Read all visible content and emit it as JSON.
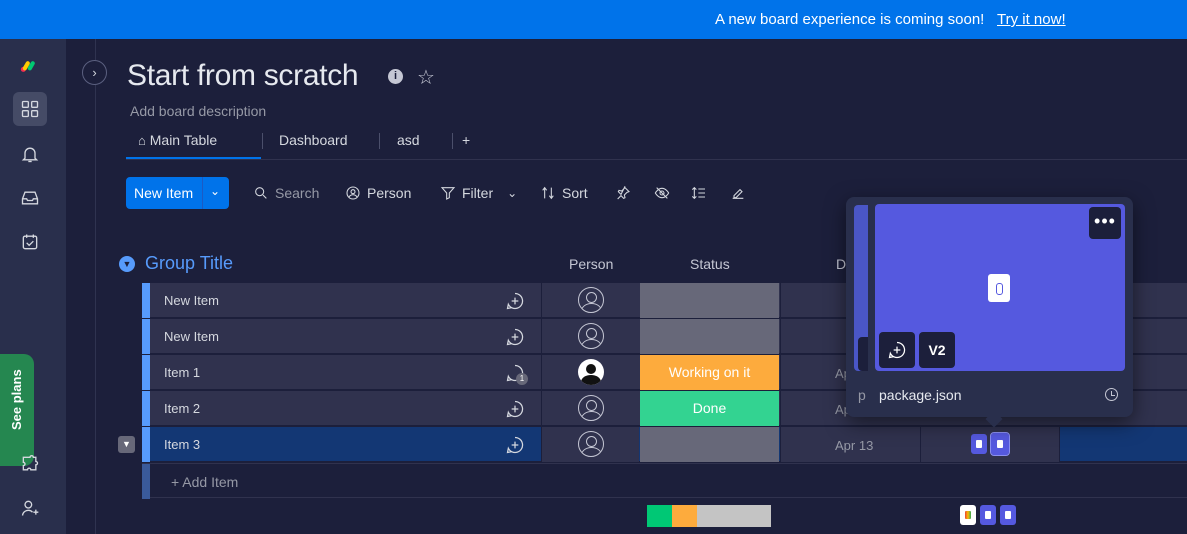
{
  "banner": {
    "message": "A new board experience is coming soon!",
    "link": "Try it now!"
  },
  "leftbar": {
    "see_plans": "See plans"
  },
  "board": {
    "title": "Start from scratch",
    "description": "Add board description",
    "tabs": [
      {
        "label": "Main Table"
      },
      {
        "label": "Dashboard"
      },
      {
        "label": "asd"
      },
      {
        "label": "+"
      }
    ]
  },
  "toolbar": {
    "new_item": "New Item",
    "search": "Search",
    "person": "Person",
    "filter": "Filter",
    "sort": "Sort"
  },
  "group": {
    "title": "Group Title",
    "columns": {
      "person": "Person",
      "status": "Status",
      "date": "D"
    },
    "rows": [
      {
        "name": "New Item",
        "status": "",
        "date": ""
      },
      {
        "name": "New Item",
        "status": "",
        "date": ""
      },
      {
        "name": "Item 1",
        "status": "Working on it",
        "date": "Ap",
        "conv_count": "1",
        "status_color": "#fdab3d"
      },
      {
        "name": "Item 2",
        "status": "Done",
        "date": "Ap",
        "status_color": "#33d391"
      },
      {
        "name": "Item 3",
        "status": "",
        "date": "Apr 13"
      }
    ],
    "add_item": "+ Add Item"
  },
  "summary": {
    "segments": [
      {
        "color": "#00c875",
        "fraction": 0.2
      },
      {
        "color": "#fdab3d",
        "fraction": 0.2
      },
      {
        "color": "#c4c4c4",
        "fraction": 0.6
      }
    ]
  },
  "file_popover": {
    "filename": "package.json",
    "version": "V2",
    "peek_letter": "p"
  },
  "colors": {
    "accent": "#0073ea",
    "group": "#579bfc",
    "file": "#5559df"
  }
}
